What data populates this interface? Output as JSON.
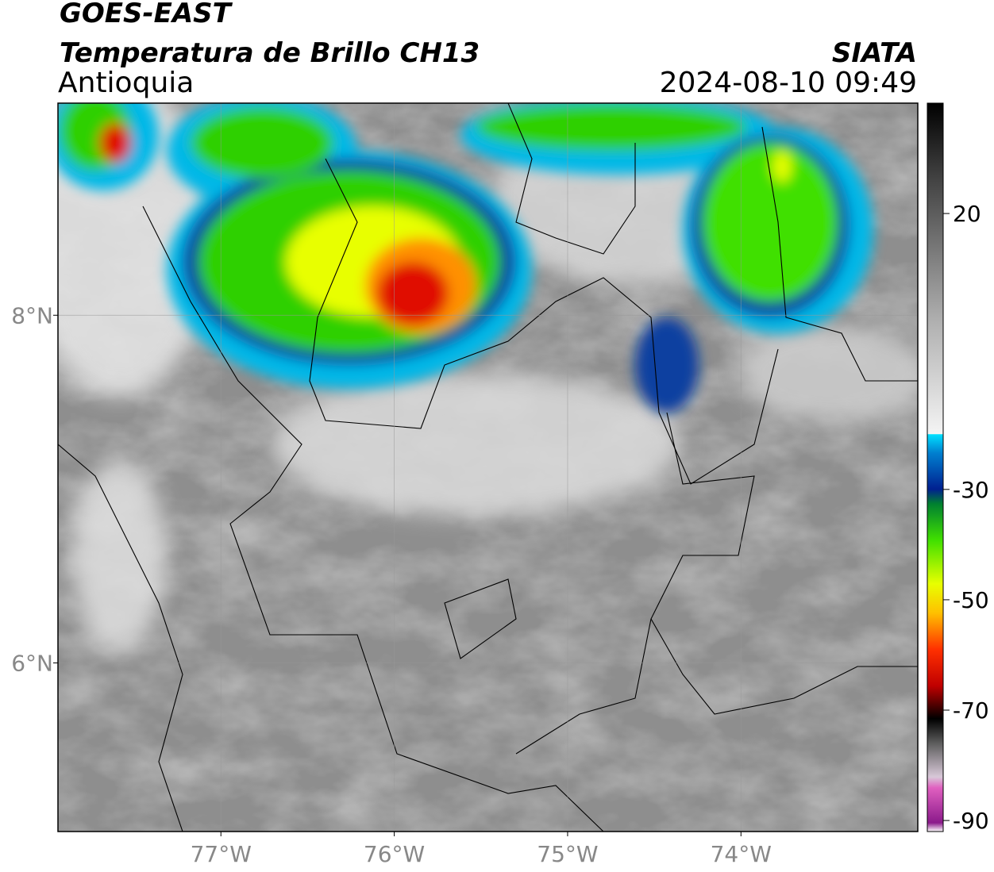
{
  "header": {
    "title": "GOES-EAST",
    "subtitle": "Temperatura de Brillo CH13",
    "region": "Antioquia",
    "source": "SIATA",
    "datetime": "2024-08-10 09:49"
  },
  "map": {
    "xlim": [
      -77.94,
      -72.98
    ],
    "ylim": [
      5.03,
      9.22
    ],
    "xticks": [
      {
        "value": -77,
        "label": "77°W"
      },
      {
        "value": -76,
        "label": "76°W"
      },
      {
        "value": -75,
        "label": "75°W"
      },
      {
        "value": -74,
        "label": "74°W"
      }
    ],
    "yticks": [
      {
        "value": 6,
        "label": "6°N"
      },
      {
        "value": 8,
        "label": "8°N"
      }
    ],
    "grid": true
  },
  "colorbar": {
    "lim": [
      -92,
      40
    ],
    "ticks": [
      20,
      -30,
      -50,
      -70,
      -90
    ]
  }
}
